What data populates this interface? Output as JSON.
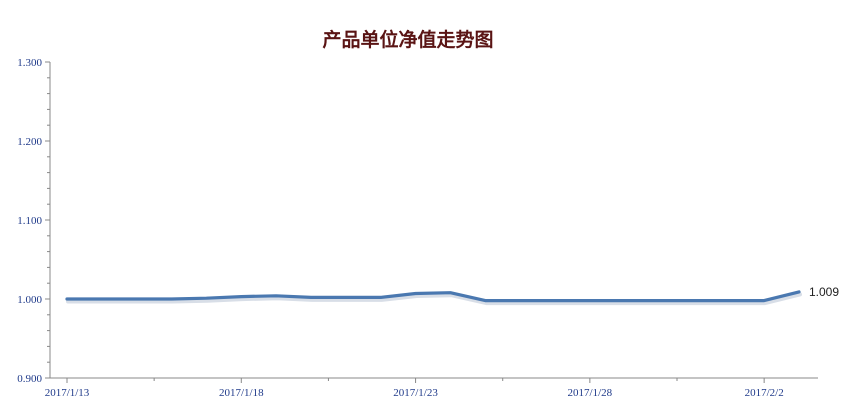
{
  "chart_data": {
    "type": "line",
    "title": "产品单位净值走势图",
    "xlabel": "",
    "ylabel": "",
    "ylim": [
      0.9,
      1.3
    ],
    "yticks": [
      "0.900",
      "1.000",
      "1.100",
      "1.200",
      "1.300"
    ],
    "x_tick_labels": [
      "2017/1/13",
      "2017/1/18",
      "2017/1/23",
      "2017/1/28",
      "2017/2/2"
    ],
    "x": [
      "2017/1/13",
      "2017/1/14",
      "2017/1/15",
      "2017/1/16",
      "2017/1/17",
      "2017/1/18",
      "2017/1/19",
      "2017/1/20",
      "2017/1/21",
      "2017/1/22",
      "2017/1/23",
      "2017/1/24",
      "2017/1/25",
      "2017/1/26",
      "2017/1/27",
      "2017/1/28",
      "2017/1/29",
      "2017/1/30",
      "2017/1/31",
      "2017/2/1",
      "2017/2/2",
      "2017/2/3"
    ],
    "series": [
      {
        "values": [
          1.0,
          1.0,
          1.0,
          1.0,
          1.001,
          1.003,
          1.004,
          1.002,
          1.002,
          1.002,
          1.007,
          1.008,
          0.998,
          0.998,
          0.998,
          0.998,
          0.998,
          0.998,
          0.998,
          0.998,
          0.998,
          1.009
        ]
      }
    ],
    "last_value_label": "1.009",
    "line_color": "#4a78b0",
    "title_color": "#5a1414",
    "axis_color": "#888888",
    "tick_label_color": "#1f3a8a",
    "grid": false,
    "legend": "none"
  }
}
